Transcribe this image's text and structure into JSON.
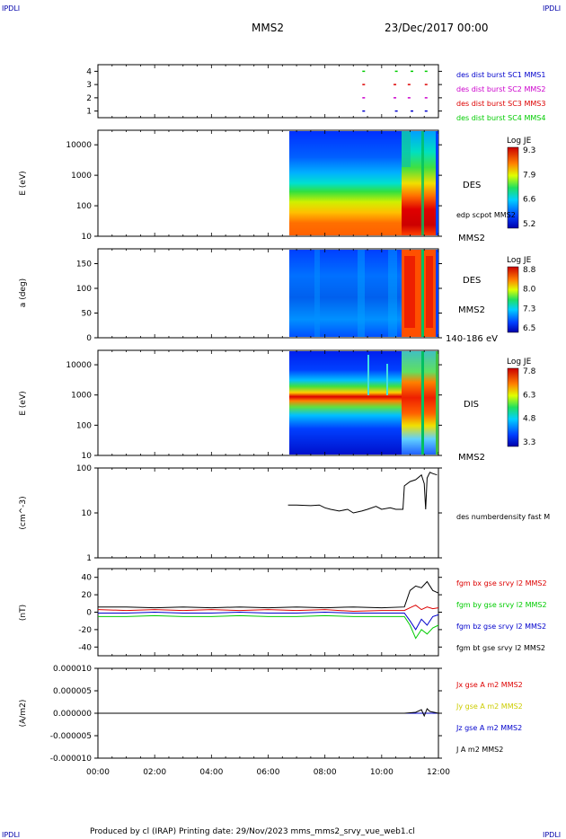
{
  "header": {
    "corner_tl": "IPDLI",
    "corner_tr": "IPDLI",
    "corner_bl": "IPDLI",
    "corner_br": "IPDLI",
    "spacecraft": "MMS2",
    "datetime": "23/Dec/2017 00:00"
  },
  "footer": {
    "text": "Produced by cl (IRAP)   Printing date: 29/Nov/2023   mms_mms2_srvy_vue_web1.cl"
  },
  "colors": {
    "blue": "#0000cc",
    "magenta": "#cc00cc",
    "red": "#dd0000",
    "green": "#00cc00",
    "black": "#000000"
  },
  "chart_data": [
    {
      "id": "burst",
      "type": "scatter",
      "ylim": [
        0.5,
        4.5
      ],
      "y_ticks": [
        "1",
        "2",
        "3",
        "4"
      ],
      "series": [
        {
          "name": "des dist burst SC1 MMS1",
          "color": "#0000cc",
          "level": 1,
          "times": [
            9.35,
            10.5,
            11.05,
            11.55
          ]
        },
        {
          "name": "des dist burst SC2 MMS2",
          "color": "#cc00cc",
          "level": 2,
          "times": [
            9.35,
            10.45,
            10.95,
            11.55
          ]
        },
        {
          "name": "des dist burst SC3 MMS3",
          "color": "#dd0000",
          "level": 3,
          "times": [
            9.35,
            10.45,
            10.95,
            11.55
          ]
        },
        {
          "name": "des dist burst SC4 MMS4",
          "color": "#00cc00",
          "level": 4,
          "times": [
            9.35,
            10.5,
            11.05,
            11.55
          ]
        }
      ]
    },
    {
      "id": "des_energy",
      "type": "heatmap",
      "ylabel": "E (eV)",
      "yscale": "log",
      "ylim": [
        10,
        30000
      ],
      "y_ticks": [
        "10",
        "100",
        "1000",
        "10000"
      ],
      "label": "DES",
      "side_label": "edp scpot MMS2",
      "bottom_label": "MMS2",
      "colorbar": {
        "title": "Log JE",
        "ticks": [
          "9.3",
          "7.9",
          "6.6",
          "5.2"
        ],
        "range": [
          5.2,
          9.3
        ]
      },
      "data_start": 6.75,
      "boundary": 10.8,
      "spike": 11.55
    },
    {
      "id": "des_pitch",
      "type": "heatmap",
      "ylabel": "a (deg)",
      "ylim": [
        0,
        180
      ],
      "y_ticks": [
        "0",
        "50",
        "100",
        "150"
      ],
      "label": "DES",
      "side_label": "MMS2",
      "bottom_label": "140-186 eV",
      "colorbar": {
        "title": "Log JE",
        "ticks": [
          "8.8",
          "8.0",
          "7.3",
          "6.5"
        ],
        "range": [
          6.5,
          8.8
        ]
      },
      "data_start": 6.75,
      "boundary": 10.8,
      "spike": 11.55
    },
    {
      "id": "dis_energy",
      "type": "heatmap",
      "ylabel": "E (eV)",
      "yscale": "log",
      "ylim": [
        10,
        30000
      ],
      "y_ticks": [
        "10",
        "100",
        "1000",
        "10000"
      ],
      "label": "DIS",
      "bottom_label": "MMS2",
      "colorbar": {
        "title": "Log JE",
        "ticks": [
          "7.8",
          "6.3",
          "4.8",
          "3.3"
        ],
        "range": [
          3.3,
          7.8
        ]
      },
      "data_start": 6.75,
      "boundary": 10.8,
      "spike": 11.55
    },
    {
      "id": "density",
      "type": "line",
      "ylabel": "(cm^-3)",
      "yscale": "log",
      "ylim": [
        1,
        100
      ],
      "y_ticks": [
        "1",
        "10",
        "100"
      ],
      "series": [
        {
          "name": "des numberdensity fast M",
          "color": "#000000",
          "x": [
            6.7,
            7.0,
            7.5,
            7.8,
            8.0,
            8.2,
            8.5,
            8.8,
            9.0,
            9.3,
            9.5,
            9.8,
            10.0,
            10.3,
            10.5,
            10.75,
            10.8,
            11.0,
            11.2,
            11.4,
            11.5,
            11.55,
            11.6,
            11.7,
            11.8,
            11.95
          ],
          "y": [
            15,
            15,
            14.5,
            15,
            13,
            12,
            11,
            12,
            10,
            11,
            12,
            14,
            12,
            13,
            12,
            12,
            40,
            50,
            55,
            70,
            45,
            12,
            60,
            80,
            75,
            70
          ]
        }
      ]
    },
    {
      "id": "fgm",
      "type": "line",
      "ylabel": "(nT)",
      "ylim": [
        -50,
        50
      ],
      "y_ticks": [
        "-40",
        "-20",
        "0",
        "20",
        "40"
      ],
      "series": [
        {
          "name": "fgm bx gse srvy l2 MMS2",
          "color": "#dd0000",
          "x": [
            0,
            1,
            2,
            3,
            4,
            5,
            6,
            7,
            8,
            9,
            10,
            10.8,
            11.0,
            11.2,
            11.4,
            11.6,
            11.8,
            12
          ],
          "y": [
            3,
            2,
            3,
            2,
            3,
            2,
            3,
            2,
            3,
            1,
            2,
            2,
            5,
            8,
            3,
            6,
            4,
            5
          ]
        },
        {
          "name": "fgm by gse srvy l2 MMS2",
          "color": "#00cc00",
          "x": [
            0,
            1,
            2,
            3,
            4,
            5,
            6,
            7,
            8,
            9,
            10,
            10.8,
            11.0,
            11.2,
            11.4,
            11.6,
            11.8,
            12
          ],
          "y": [
            -5,
            -5,
            -4,
            -5,
            -5,
            -4,
            -5,
            -5,
            -4,
            -5,
            -5,
            -5,
            -15,
            -30,
            -20,
            -25,
            -18,
            -15
          ]
        },
        {
          "name": "fgm bz gse srvy l2 MMS2",
          "color": "#0000cc",
          "x": [
            0,
            1,
            2,
            3,
            4,
            5,
            6,
            7,
            8,
            9,
            10,
            10.8,
            11.0,
            11.2,
            11.4,
            11.6,
            11.8,
            12
          ],
          "y": [
            -1,
            -1,
            0,
            -1,
            -1,
            0,
            -1,
            -1,
            0,
            -1,
            -1,
            -1,
            -10,
            -20,
            -8,
            -15,
            -5,
            -3
          ]
        },
        {
          "name": "fgm bt gse srvy l2 MMS2",
          "color": "#000000",
          "x": [
            0,
            1,
            2,
            3,
            4,
            5,
            6,
            7,
            8,
            9,
            10,
            10.8,
            11.0,
            11.2,
            11.4,
            11.6,
            11.8,
            12
          ],
          "y": [
            6,
            6,
            5,
            6,
            5,
            6,
            5,
            6,
            5,
            6,
            5,
            6,
            25,
            30,
            28,
            35,
            25,
            22
          ]
        }
      ]
    },
    {
      "id": "current",
      "type": "line",
      "ylabel": "(A/m2)",
      "ylim": [
        -1e-05,
        1e-05
      ],
      "y_ticks": [
        "-0.000010",
        "-0.000005",
        "0.000000",
        "0.000005",
        "0.000010"
      ],
      "series": [
        {
          "name": "Jx gse A m2 MMS2",
          "color": "#dd0000",
          "x": [
            0,
            12
          ],
          "y": [
            0,
            0
          ]
        },
        {
          "name": "Jy gse A m2 MMS2",
          "color": "#cccc00",
          "x": [
            0,
            12
          ],
          "y": [
            0,
            0
          ]
        },
        {
          "name": "Jz gse A m2 MMS2",
          "color": "#0000cc",
          "x": [
            0,
            12
          ],
          "y": [
            0,
            0
          ]
        },
        {
          "name": "J A m2 MMS2",
          "color": "#000000",
          "x": [
            0,
            6,
            6.7,
            10.8,
            11.2,
            11.4,
            11.5,
            11.6,
            11.7,
            12
          ],
          "y": [
            0,
            0,
            0,
            0,
            2e-07,
            8e-07,
            -6e-07,
            1e-06,
            4e-07,
            0
          ]
        }
      ]
    }
  ],
  "time_axis": {
    "ticks": [
      "00:00",
      "02:00",
      "04:00",
      "06:00",
      "08:00",
      "10:00",
      "12:00"
    ]
  }
}
